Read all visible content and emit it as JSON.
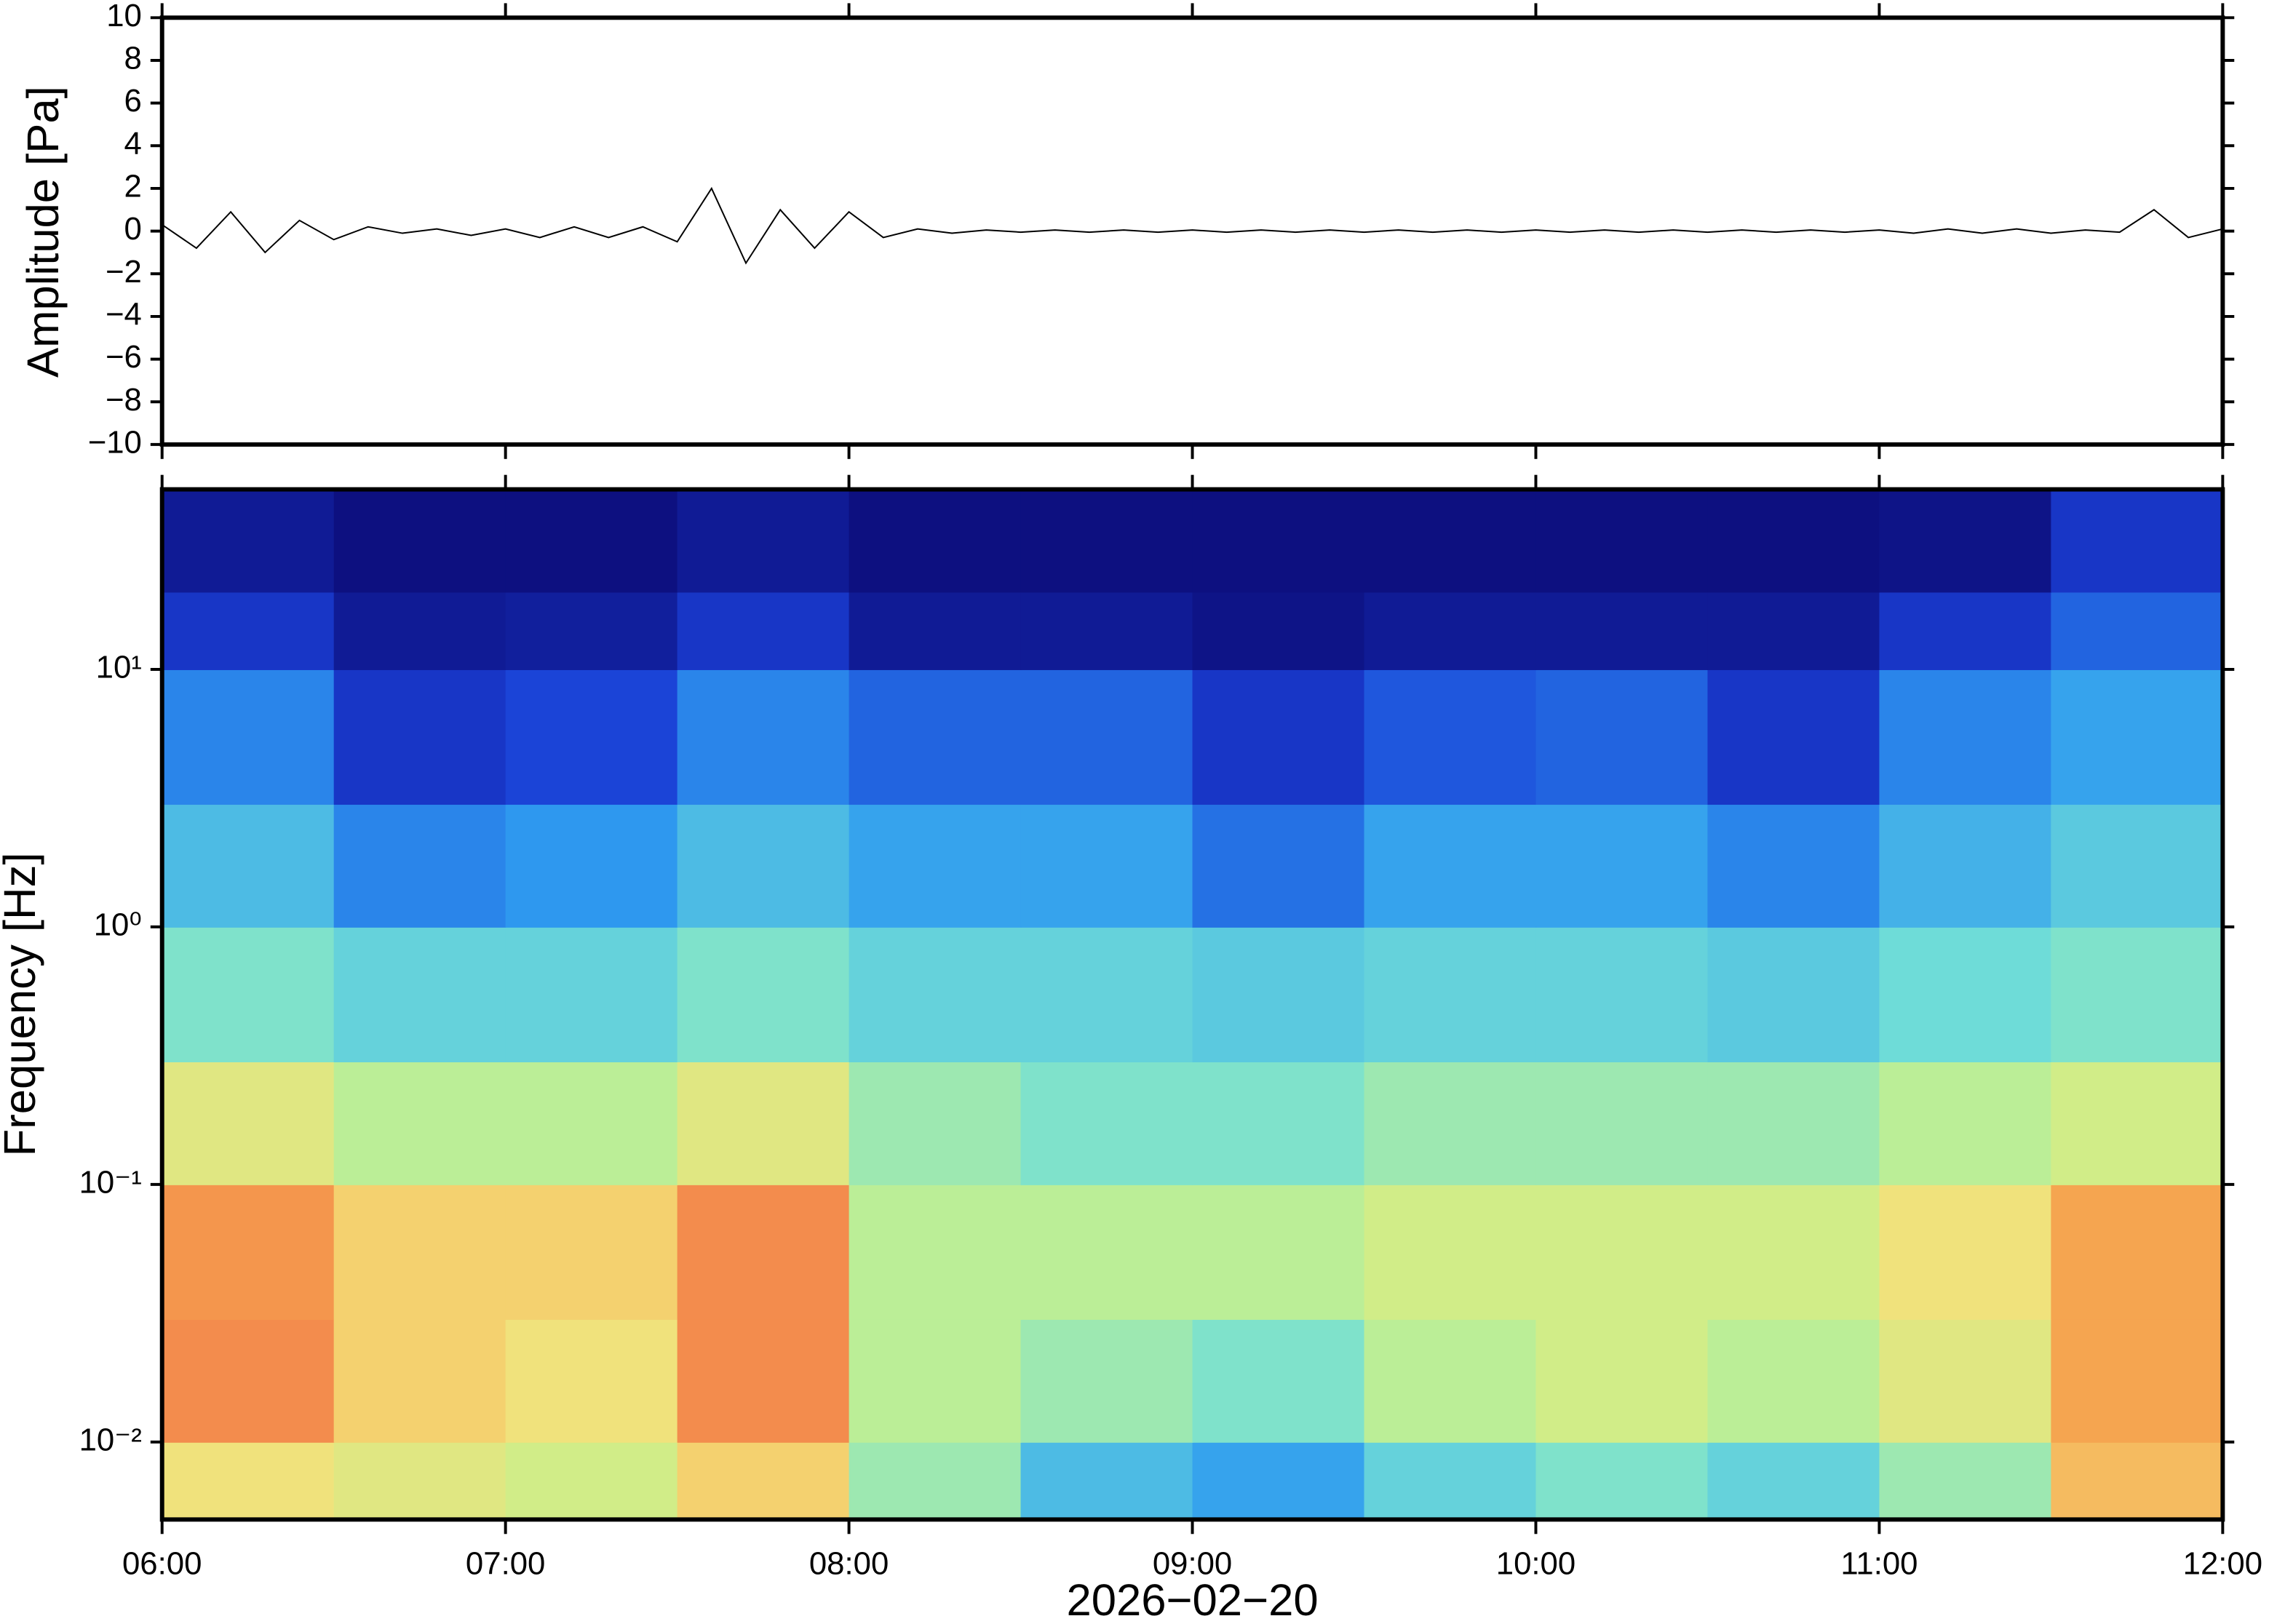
{
  "chart_data": [
    {
      "type": "line",
      "ylabel": "Amplitude [Pa]",
      "color": "#000000",
      "x": [
        6.0,
        6.1,
        6.2,
        6.3,
        6.4,
        6.5,
        6.6,
        6.7,
        6.8,
        6.9,
        7.0,
        7.1,
        7.2,
        7.3,
        7.4,
        7.5,
        7.6,
        7.7,
        7.8,
        7.9,
        8.0,
        8.1,
        8.2,
        8.3,
        8.4,
        8.5,
        8.6,
        8.7,
        8.8,
        8.9,
        9.0,
        9.1,
        9.2,
        9.3,
        9.4,
        9.5,
        9.6,
        9.7,
        9.8,
        9.9,
        10.0,
        10.1,
        10.2,
        10.3,
        10.4,
        10.5,
        10.6,
        10.7,
        10.8,
        10.9,
        11.0,
        11.1,
        11.2,
        11.3,
        11.4,
        11.5,
        11.6,
        11.7,
        11.8,
        11.9,
        12.0
      ],
      "values": [
        0.3,
        -0.8,
        0.9,
        -1.0,
        0.5,
        -0.4,
        0.2,
        -0.1,
        0.1,
        -0.2,
        0.1,
        -0.3,
        0.2,
        -0.3,
        0.2,
        -0.5,
        2.0,
        -1.5,
        1.0,
        -0.8,
        0.9,
        -0.3,
        0.1,
        -0.1,
        0.05,
        -0.05,
        0.05,
        -0.05,
        0.05,
        -0.05,
        0.05,
        -0.05,
        0.05,
        -0.05,
        0.05,
        -0.05,
        0.05,
        -0.05,
        0.05,
        -0.05,
        0.05,
        -0.05,
        0.05,
        -0.05,
        0.05,
        -0.05,
        0.05,
        -0.05,
        0.05,
        -0.05,
        0.05,
        -0.1,
        0.1,
        -0.1,
        0.1,
        -0.1,
        0.05,
        -0.05,
        1.0,
        -0.3,
        0.1
      ],
      "xlim": [
        6,
        12
      ],
      "xticks": [
        6,
        7,
        8,
        9,
        10,
        11,
        12
      ],
      "ylim": [
        -10,
        10
      ],
      "yticks": [
        {
          "value": -10,
          "label": "−10"
        },
        {
          "value": -8,
          "label": "−8"
        },
        {
          "value": -6,
          "label": "−6"
        },
        {
          "value": -4,
          "label": "−4"
        },
        {
          "value": -2,
          "label": "−2"
        },
        0,
        2,
        4,
        6,
        8,
        10
      ]
    },
    {
      "type": "heatmap",
      "ylabel": "Frequency [Hz]",
      "xlabel": "2026−02−20",
      "log_y": true,
      "xlim": [
        6,
        12
      ],
      "xticks": [
        {
          "value": 6,
          "label": "06:00"
        },
        {
          "value": 7,
          "label": "07:00"
        },
        {
          "value": 8,
          "label": "08:00"
        },
        {
          "value": 9,
          "label": "09:00"
        },
        {
          "value": 10,
          "label": "10:00"
        },
        {
          "value": 11,
          "label": "11:00"
        },
        {
          "value": 12,
          "label": "12:00"
        }
      ],
      "ylim": [
        0.005,
        50
      ],
      "yticks": [
        {
          "value": 0.01,
          "label": "10⁻²"
        },
        {
          "value": 0.1,
          "label": "10⁻¹"
        },
        {
          "value": 1,
          "label": "10⁰"
        },
        {
          "value": 10,
          "label": "10¹"
        }
      ],
      "x_bins": [
        6.0,
        6.5,
        7.0,
        7.5,
        8.0,
        8.5,
        9.0,
        9.5,
        10.0,
        10.5,
        11.0,
        11.5,
        12.0
      ],
      "y_bins": [
        0.005,
        0.01,
        0.03,
        0.1,
        0.3,
        1,
        3,
        10,
        20,
        50
      ],
      "colormap": [
        "#0b0872",
        "#1a3fd6",
        "#2f9cf0",
        "#72e0d6",
        "#c8f08c",
        "#f4e07a",
        "#f5a24e",
        "#ee5a4a"
      ],
      "z": [
        [
          0.7,
          0.65,
          0.6,
          0.75,
          0.5,
          0.35,
          0.3,
          0.4,
          0.45,
          0.4,
          0.5,
          0.8
        ],
        [
          0.9,
          0.75,
          0.7,
          0.9,
          0.55,
          0.5,
          0.45,
          0.55,
          0.6,
          0.55,
          0.65,
          0.85
        ],
        [
          0.88,
          0.75,
          0.75,
          0.9,
          0.55,
          0.55,
          0.55,
          0.6,
          0.6,
          0.6,
          0.7,
          0.85
        ],
        [
          0.65,
          0.55,
          0.55,
          0.65,
          0.5,
          0.45,
          0.45,
          0.5,
          0.5,
          0.5,
          0.55,
          0.6
        ],
        [
          0.45,
          0.4,
          0.4,
          0.45,
          0.4,
          0.4,
          0.38,
          0.4,
          0.4,
          0.38,
          0.42,
          0.45
        ],
        [
          0.35,
          0.25,
          0.28,
          0.35,
          0.3,
          0.3,
          0.22,
          0.3,
          0.3,
          0.25,
          0.33,
          0.38
        ],
        [
          0.25,
          0.12,
          0.15,
          0.25,
          0.2,
          0.2,
          0.12,
          0.18,
          0.2,
          0.12,
          0.25,
          0.3
        ],
        [
          0.12,
          0.05,
          0.06,
          0.12,
          0.05,
          0.05,
          0.03,
          0.05,
          0.05,
          0.05,
          0.12,
          0.2
        ],
        [
          0.05,
          0.02,
          0.02,
          0.05,
          0.02,
          0.02,
          0.02,
          0.02,
          0.02,
          0.02,
          0.03,
          0.12
        ]
      ]
    }
  ]
}
